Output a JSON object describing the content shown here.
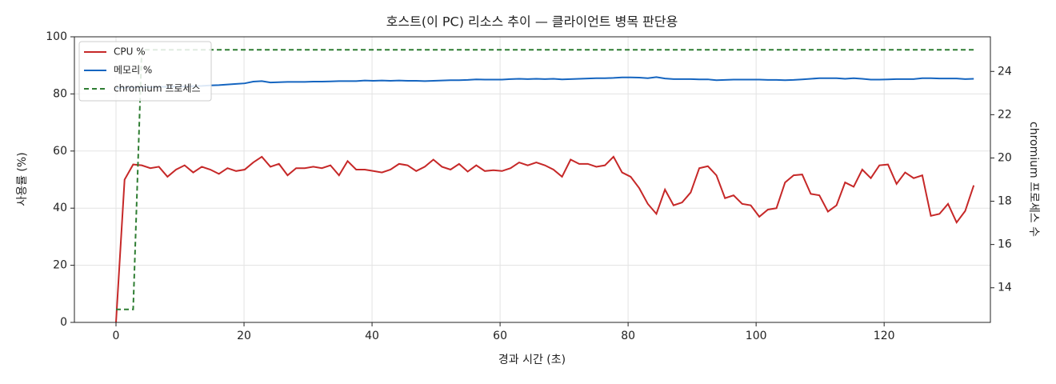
{
  "chart_data": {
    "type": "line",
    "title": "호스트(이 PC) 리소스 추이 — 클라이언트 병목 판단용",
    "x_label": "경과 시간 (초)",
    "y_label": "사용률 (%)",
    "y2_label": "chromium 프로세스 수",
    "x": [
      0,
      1.34,
      2.68,
      4.02,
      5.36,
      6.7,
      8.04,
      9.38,
      10.72,
      12.06,
      13.4,
      14.74,
      16.08,
      17.42,
      18.76,
      20.1,
      21.44,
      22.78,
      24.12,
      25.46,
      26.8,
      28.14,
      29.48,
      30.82,
      32.16,
      33.5,
      34.84,
      36.18,
      37.52,
      38.86,
      40.2,
      41.54,
      42.88,
      44.22,
      45.56,
      46.9,
      48.24,
      49.58,
      50.92,
      52.26,
      53.6,
      54.94,
      56.28,
      57.62,
      58.96,
      60.3,
      61.64,
      62.98,
      64.32,
      65.66,
      67,
      68.34,
      69.68,
      71.02,
      72.36,
      73.7,
      75.04,
      76.38,
      77.72,
      79.06,
      80.4,
      81.74,
      83.08,
      84.42,
      85.76,
      87.1,
      88.44,
      89.78,
      91.12,
      92.46,
      93.8,
      95.14,
      96.48,
      97.82,
      99.16,
      100.5,
      101.84,
      103.18,
      104.52,
      105.86,
      107.2,
      108.54,
      109.88,
      111.22,
      112.56,
      113.9,
      115.24,
      116.58,
      117.92,
      119.26,
      120.6,
      121.94,
      123.28,
      124.62,
      125.96,
      127.3,
      128.64,
      129.98,
      131.32,
      132.66,
      134
    ],
    "series": [
      {
        "name": "CPU %",
        "color": "#c62828",
        "dash": false,
        "values": [
          0,
          50,
          55.3,
          55,
          54,
          54.5,
          51,
          53.5,
          55,
          52.5,
          54.5,
          53.5,
          52,
          54,
          53,
          53.5,
          56,
          58,
          54.5,
          55.5,
          51.5,
          54,
          54,
          54.5,
          54,
          55,
          51.5,
          56.5,
          53.5,
          53.5,
          53,
          52.5,
          53.5,
          55.5,
          55,
          53,
          54.5,
          57,
          54.5,
          53.5,
          55.5,
          52.8,
          55,
          53,
          53.3,
          53,
          54,
          56,
          55,
          56,
          55,
          53.5,
          51,
          57,
          55.5,
          55.5,
          54.5,
          55,
          58,
          52.5,
          51,
          47,
          41.5,
          38,
          46.5,
          41,
          42,
          45.5,
          54,
          54.7,
          51.5,
          43.5,
          44.5,
          41.5,
          41,
          37,
          39.5,
          40,
          49,
          51.5,
          51.8,
          45,
          44.5,
          38.8,
          41,
          49,
          47.5,
          53.5,
          50.5,
          55,
          55.3,
          48.5,
          52.5,
          50.5,
          51.5,
          37.3,
          38,
          41.5,
          35,
          39,
          48
        ]
      },
      {
        "name": "메모리 %",
        "color": "#1565c0",
        "dash": false,
        "values": [
          82,
          82.2,
          82.3,
          82.4,
          82.4,
          82.5,
          82.5,
          82.6,
          82.6,
          82.7,
          82.8,
          83,
          83.1,
          83.3,
          83.5,
          83.7,
          84.3,
          84.5,
          84,
          84.1,
          84.2,
          84.2,
          84.2,
          84.3,
          84.3,
          84.4,
          84.5,
          84.5,
          84.5,
          84.7,
          84.6,
          84.7,
          84.6,
          84.7,
          84.6,
          84.6,
          84.5,
          84.6,
          84.7,
          84.8,
          84.8,
          84.9,
          85.1,
          85,
          85,
          85,
          85.2,
          85.3,
          85.2,
          85.3,
          85.2,
          85.3,
          85.1,
          85.2,
          85.3,
          85.4,
          85.5,
          85.5,
          85.6,
          85.8,
          85.8,
          85.7,
          85.5,
          85.9,
          85.4,
          85.2,
          85.2,
          85.2,
          85.1,
          85.1,
          84.8,
          84.9,
          85,
          85,
          85,
          85,
          84.9,
          84.9,
          84.8,
          84.9,
          85.1,
          85.3,
          85.5,
          85.5,
          85.5,
          85.3,
          85.5,
          85.3,
          85,
          85,
          85.1,
          85.2,
          85.2,
          85.2,
          85.5,
          85.5,
          85.4,
          85.4,
          85.4,
          85.2,
          85.3
        ]
      },
      {
        "name": "chromium 프로세스",
        "color": "#2e7d32",
        "dash": true,
        "axis": "y2",
        "values": [
          13,
          13,
          13,
          25,
          25,
          25,
          25,
          25,
          25,
          25,
          25,
          25,
          25,
          25,
          25,
          25,
          25,
          25,
          25,
          25,
          25,
          25,
          25,
          25,
          25,
          25,
          25,
          25,
          25,
          25,
          25,
          25,
          25,
          25,
          25,
          25,
          25,
          25,
          25,
          25,
          25,
          25,
          25,
          25,
          25,
          25,
          25,
          25,
          25,
          25,
          25,
          25,
          25,
          25,
          25,
          25,
          25,
          25,
          25,
          25,
          25,
          25,
          25,
          25,
          25,
          25,
          25,
          25,
          25,
          25,
          25,
          25,
          25,
          25,
          25,
          25,
          25,
          25,
          25,
          25,
          25,
          25,
          25,
          25,
          25,
          25,
          25,
          25,
          25,
          25,
          25,
          25,
          25,
          25,
          25,
          25,
          25,
          25,
          25,
          25,
          25
        ]
      }
    ],
    "xlim": [
      -6.5,
      136.6
    ],
    "xticks": [
      0,
      20,
      40,
      60,
      80,
      100,
      120
    ],
    "ylim": [
      0,
      100
    ],
    "yticks": [
      0,
      20,
      40,
      60,
      80,
      100
    ],
    "y2lim": [
      12.4,
      25.6
    ],
    "y2ticks": [
      14,
      16,
      18,
      20,
      22,
      24
    ],
    "grid": true,
    "legend": "upper-left"
  }
}
